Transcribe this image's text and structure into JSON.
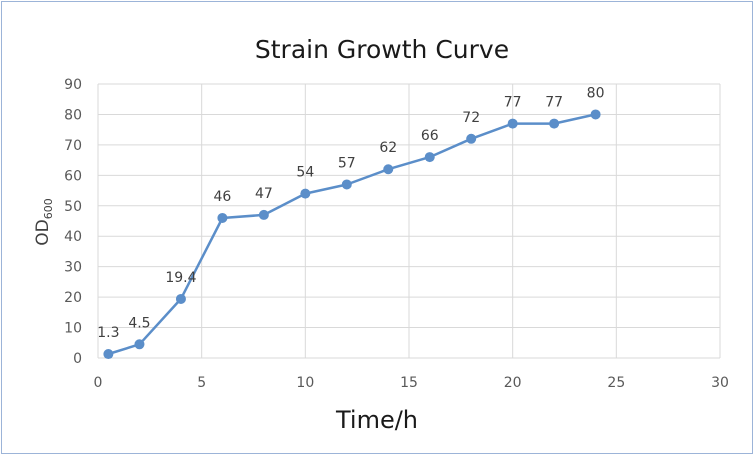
{
  "chart_data": {
    "type": "scatter",
    "title": "Strain Growth Curve",
    "xlabel": "Time/h",
    "ylabel": "OD",
    "ylabel_subscript": "600",
    "xlim": [
      0,
      30
    ],
    "ylim": [
      0,
      90
    ],
    "xticks": [
      0,
      5,
      10,
      15,
      20,
      25,
      30
    ],
    "yticks": [
      0,
      10,
      20,
      30,
      40,
      50,
      60,
      70,
      80,
      90
    ],
    "grid": true,
    "line_color": "#5b8ec9",
    "grid_color": "#d9d9d9",
    "series": [
      {
        "x": [
          0.5,
          2,
          4,
          6,
          8,
          10,
          12,
          14,
          16,
          18,
          20,
          22,
          24
        ],
        "y": [
          1.3,
          4.5,
          19.4,
          46,
          47,
          54,
          57,
          62,
          66,
          72,
          77,
          77,
          80
        ],
        "labels": [
          "1.3",
          "4.5",
          "19.4",
          "46",
          "47",
          "54",
          "57",
          "62",
          "66",
          "72",
          "77",
          "77",
          "80"
        ]
      }
    ]
  }
}
